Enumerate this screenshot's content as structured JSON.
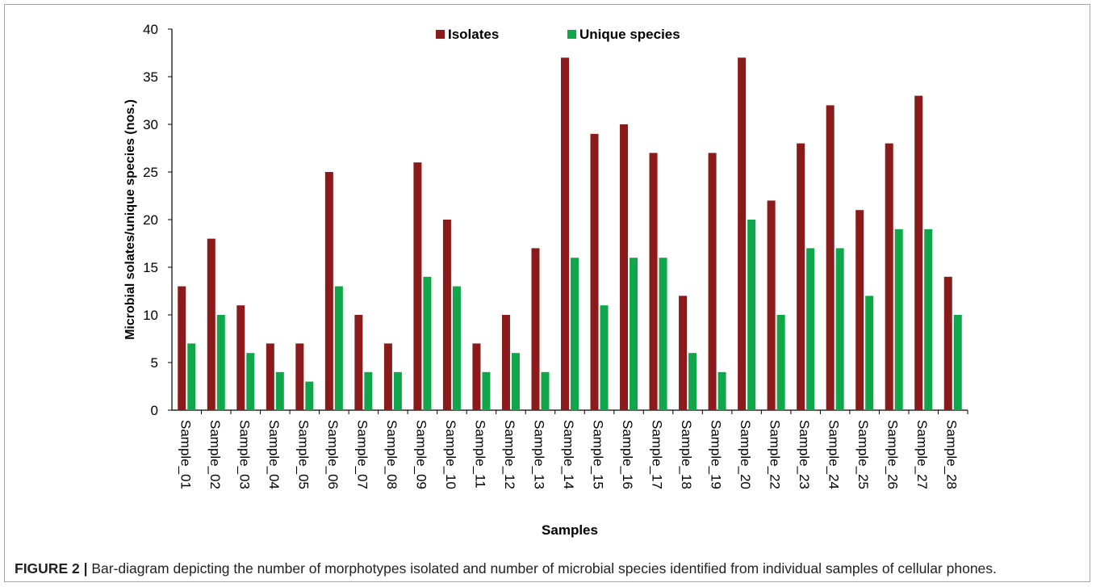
{
  "figure": {
    "caption_label": "FIGURE 2 |",
    "caption_text": " Bar-diagram depicting the number of morphotypes isolated and number of microbial species identified from individual samples of cellular phones."
  },
  "colors": {
    "isolates": "#8b1a1a",
    "unique_species": "#10a64a",
    "axis": "#000000",
    "text": "#000000"
  },
  "chart_data": {
    "type": "bar",
    "title": "",
    "xlabel": "Samples",
    "ylabel": "Microbial solates/unique species (nos.)",
    "ylim": [
      0,
      40
    ],
    "yticks": [
      0,
      5,
      10,
      15,
      20,
      25,
      30,
      35,
      40
    ],
    "grid": false,
    "legend_position": "top-center",
    "categories": [
      "Sample_01",
      "Sample_02",
      "Sample_03",
      "Sample_04",
      "Sample_05",
      "Sample_06",
      "Sample_07",
      "Sample_08",
      "Sample_09",
      "Sample_10",
      "Sample_11",
      "Sample_12",
      "Sample_13",
      "Sample_14",
      "Sample_15",
      "Sample_16",
      "Sample_17",
      "Sample_18",
      "Sample_19",
      "Sample_20",
      "Sample_22",
      "Sample_23",
      "Sample_24",
      "Sample_25",
      "Sample_26",
      "Sample_27",
      "Sample_28"
    ],
    "series": [
      {
        "name": "Isolates",
        "values": [
          13,
          18,
          11,
          7,
          7,
          25,
          10,
          7,
          26,
          20,
          7,
          10,
          17,
          37,
          29,
          30,
          27,
          12,
          27,
          37,
          22,
          28,
          32,
          21,
          28,
          33,
          14
        ]
      },
      {
        "name": "Unique species",
        "values": [
          7,
          10,
          6,
          4,
          3,
          13,
          4,
          4,
          14,
          13,
          4,
          6,
          4,
          16,
          11,
          16,
          16,
          6,
          4,
          20,
          10,
          17,
          17,
          12,
          19,
          19,
          10
        ]
      }
    ]
  }
}
